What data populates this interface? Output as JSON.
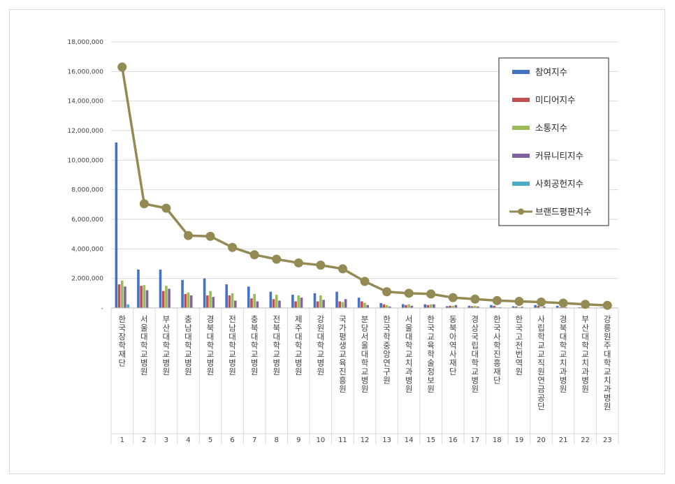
{
  "chart_data": {
    "type": "bar",
    "title": "",
    "xlabel": "",
    "ylabel": "",
    "ylim": [
      0,
      18000000
    ],
    "yticks": [
      0,
      2000000,
      4000000,
      6000000,
      8000000,
      10000000,
      12000000,
      14000000,
      16000000,
      18000000
    ],
    "ytick_labels": [
      "-",
      "2,000,000",
      "4,000,000",
      "6,000,000",
      "8,000,000",
      "10,000,000",
      "12,000,000",
      "14,000,000",
      "16,000,000",
      "18,000,000"
    ],
    "grid": true,
    "legend_position": "top-right",
    "categories": [
      "한국장학재단",
      "서울대학교병원",
      "부산대학교병원",
      "충남대학교병원",
      "경북대학교병원",
      "전남대학교병원",
      "충북대학교병원",
      "전북대학교병원",
      "제주대학교병원",
      "강원대학교병원",
      "국가평생교육진흥원",
      "분당서울대학교병원",
      "한국학중앙연구원",
      "서울대학교치과병원",
      "한국교육학술정보원",
      "동북아역사재단",
      "경상국립대학교병원",
      "한국사학진흥재단",
      "한국고전번역원",
      "사립학교교직원연금공단",
      "경북대학교치과병원",
      "부산대학교치과병원",
      "강릉원주대학교치과병원"
    ],
    "ranks": [
      "1",
      "2",
      "3",
      "4",
      "5",
      "6",
      "7",
      "8",
      "9",
      "10",
      "11",
      "12",
      "13",
      "14",
      "15",
      "16",
      "17",
      "18",
      "19",
      "20",
      "21",
      "22",
      "23"
    ],
    "series": [
      {
        "name": "참여지수",
        "kind": "bar",
        "color": "#4472c4",
        "values": [
          11200000,
          2600000,
          2600000,
          1900000,
          2000000,
          1600000,
          1450000,
          1100000,
          900000,
          1000000,
          1100000,
          700000,
          330000,
          260000,
          250000,
          120000,
          150000,
          200000,
          120000,
          200000,
          150000,
          50000,
          40000
        ]
      },
      {
        "name": "미디어지수",
        "kind": "bar",
        "color": "#c0504d",
        "values": [
          1600000,
          1500000,
          1150000,
          950000,
          850000,
          850000,
          650000,
          600000,
          450000,
          450000,
          450000,
          450000,
          250000,
          200000,
          200000,
          150000,
          120000,
          150000,
          100000,
          150000,
          50000,
          50000,
          20000
        ]
      },
      {
        "name": "소통지수",
        "kind": "bar",
        "color": "#9bbb59",
        "values": [
          1850000,
          1550000,
          1500000,
          1050000,
          1150000,
          1000000,
          950000,
          900000,
          850000,
          850000,
          400000,
          350000,
          200000,
          250000,
          250000,
          150000,
          150000,
          50000,
          50000,
          30000,
          30000,
          20000,
          20000
        ]
      },
      {
        "name": "커뮤니티지수",
        "kind": "bar",
        "color": "#8064a2",
        "values": [
          1450000,
          1200000,
          1300000,
          850000,
          750000,
          500000,
          450000,
          500000,
          700000,
          550000,
          600000,
          200000,
          100000,
          150000,
          250000,
          200000,
          100000,
          50000,
          80000,
          100000,
          50000,
          50000,
          30000
        ]
      },
      {
        "name": "사회공헌지수",
        "kind": "bar",
        "color": "#4bacc6",
        "values": [
          250000,
          30000,
          20000,
          10000,
          10000,
          10000,
          10000,
          10000,
          10000,
          10000,
          10000,
          10000,
          10000,
          10000,
          10000,
          10000,
          10000,
          10000,
          10000,
          10000,
          10000,
          10000,
          10000
        ]
      },
      {
        "name": "브랜드평판지수",
        "kind": "line",
        "color": "#948a54",
        "values": [
          16300000,
          7050000,
          6750000,
          4900000,
          4850000,
          4100000,
          3600000,
          3300000,
          3050000,
          2900000,
          2650000,
          1800000,
          1100000,
          1000000,
          950000,
          700000,
          600000,
          500000,
          450000,
          400000,
          330000,
          250000,
          180000
        ]
      }
    ]
  }
}
